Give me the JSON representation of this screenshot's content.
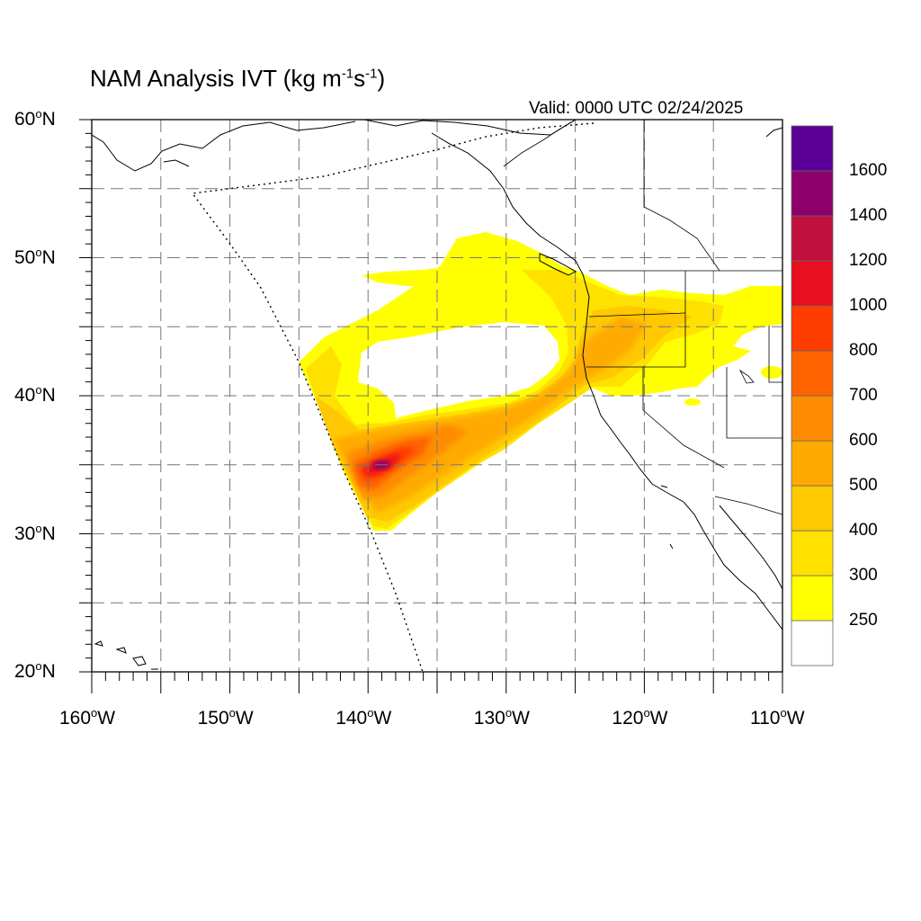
{
  "title": {
    "main": "NAM Analysis IVT (kg m",
    "exp1": "-1",
    "mid": "s",
    "exp2": "-1",
    "close": ")"
  },
  "valid_text": "Valid: 0000 UTC 02/24/2025",
  "map": {
    "lon_range": [
      -160,
      -110
    ],
    "lat_range": [
      20,
      60
    ],
    "grid": "dashed, every 5 degrees",
    "lat_labels": [
      {
        "deg": "60",
        "hem": "N"
      },
      {
        "deg": "50",
        "hem": "N"
      },
      {
        "deg": "40",
        "hem": "N"
      },
      {
        "deg": "30",
        "hem": "N"
      },
      {
        "deg": "20",
        "hem": "N"
      }
    ],
    "lon_labels": [
      {
        "deg": "160",
        "hem": "W"
      },
      {
        "deg": "150",
        "hem": "W"
      },
      {
        "deg": "140",
        "hem": "W"
      },
      {
        "deg": "130",
        "hem": "W"
      },
      {
        "deg": "120",
        "hem": "W"
      },
      {
        "deg": "110",
        "hem": "W"
      }
    ],
    "degree_symbol": "o",
    "max_ivt_region": "near 35N 139W"
  },
  "colorbar": {
    "labels": [
      "250",
      "300",
      "400",
      "500",
      "600",
      "700",
      "800",
      "1000",
      "1200",
      "1400",
      "1600"
    ],
    "colors": [
      "#ffffff",
      "#ffff00",
      "#ffe100",
      "#ffc800",
      "#ffaa00",
      "#ff8c00",
      "#ff6400",
      "#ff3c00",
      "#e8101e",
      "#c0103e",
      "#8c006c",
      "#5a0096"
    ]
  }
}
